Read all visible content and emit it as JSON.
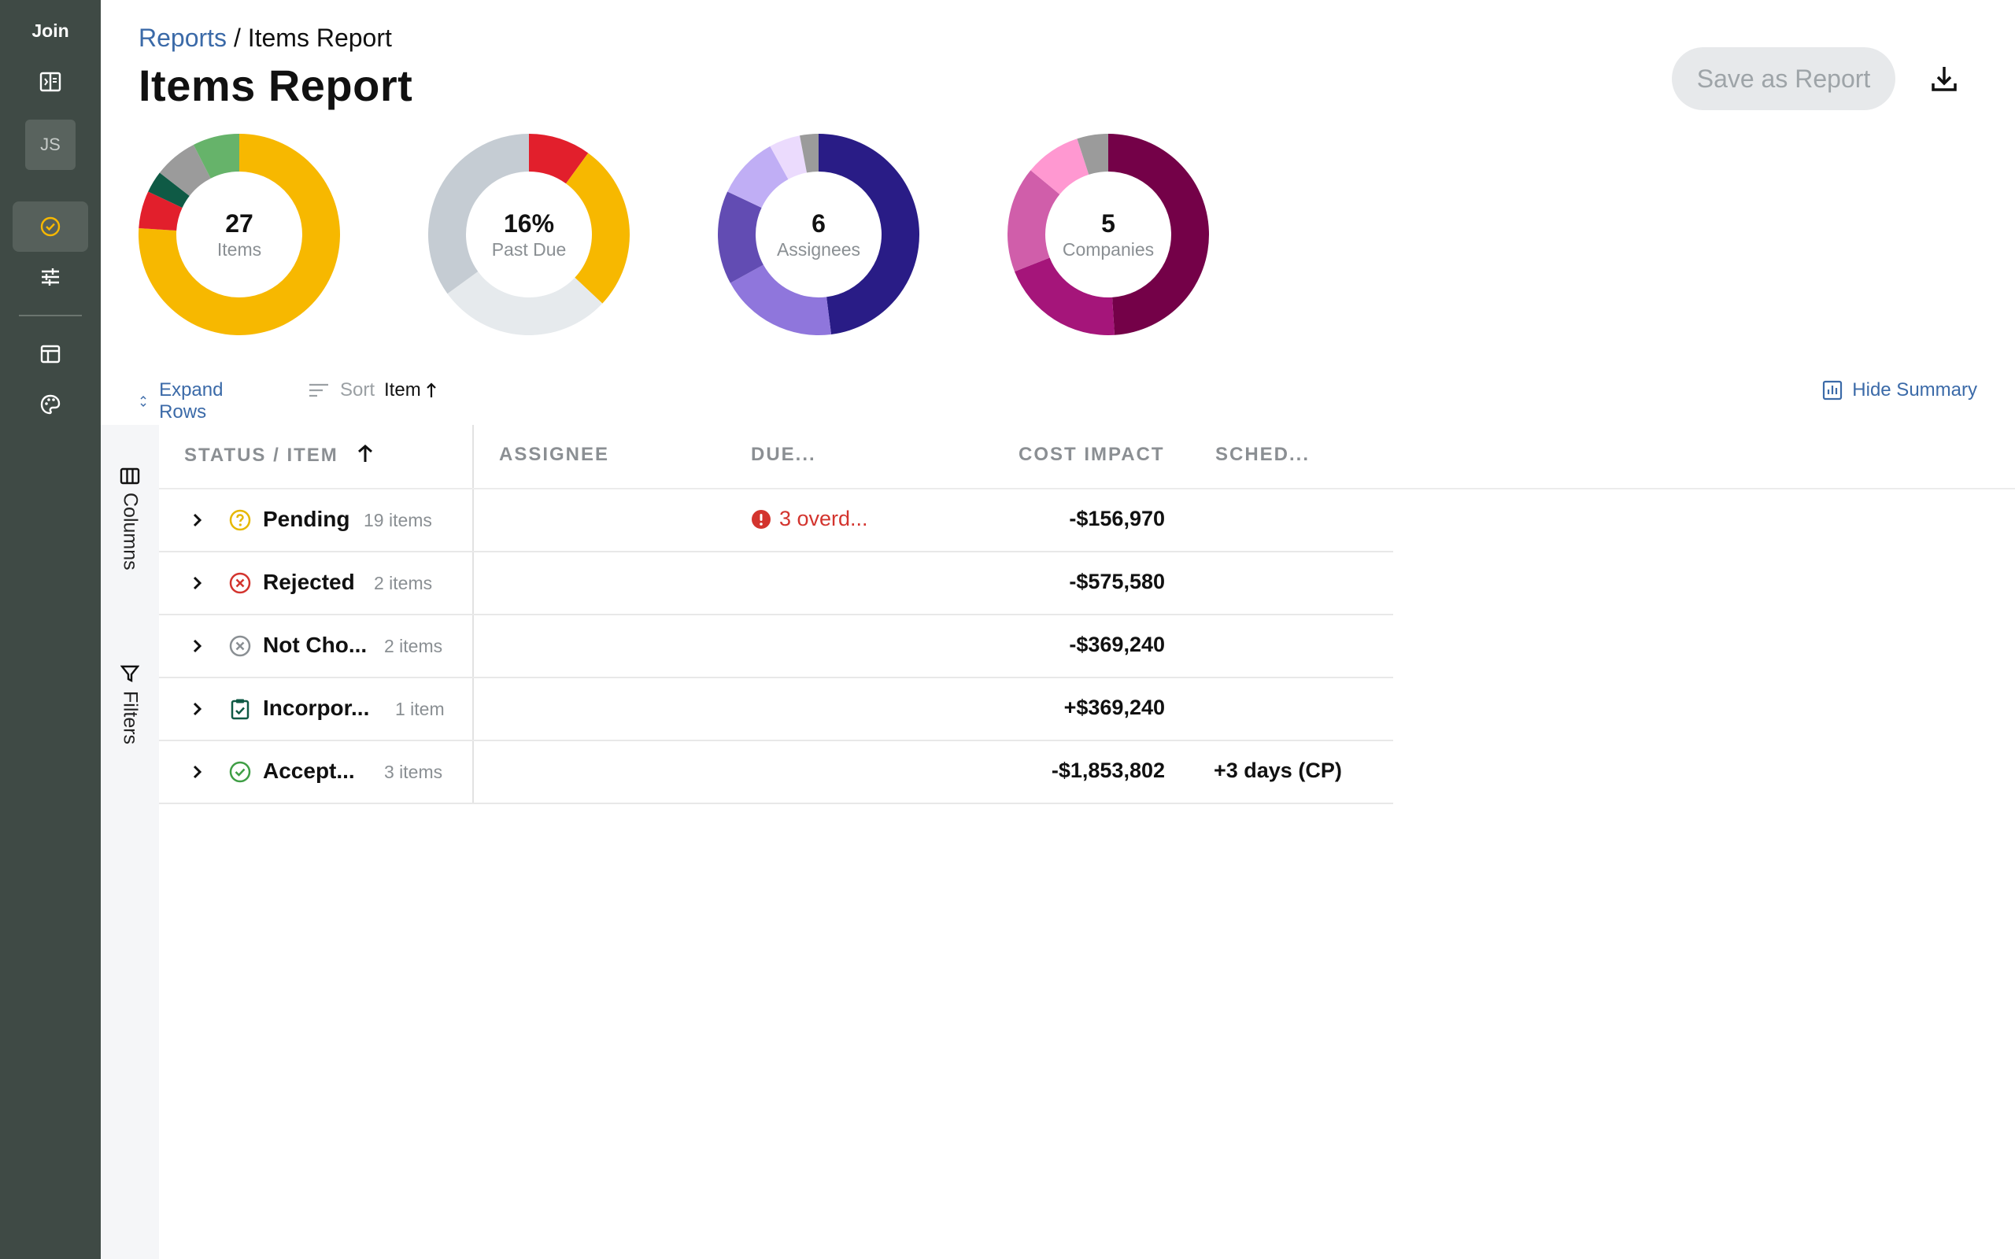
{
  "sidebar": {
    "brand": "Join",
    "avatar_initials": "JS",
    "icons": [
      "sidebar-toggle-icon",
      "check-circle-icon",
      "sliders-icon",
      "table-icon",
      "palette-icon"
    ]
  },
  "header": {
    "breadcrumb_link": "Reports",
    "breadcrumb_separator": " / ",
    "breadcrumb_current": "Items Report",
    "title": "Items Report",
    "save_label": "Save as Report"
  },
  "summary": [
    {
      "value": "27",
      "label": "Items",
      "segments": [
        {
          "color": "#f7b800",
          "fraction": 0.76
        },
        {
          "color": "#e21f2c",
          "fraction": 0.06
        },
        {
          "color": "#0f5a45",
          "fraction": 0.035
        },
        {
          "color": "#9b9b9b",
          "fraction": 0.07
        },
        {
          "color": "#66b36a",
          "fraction": 0.075
        }
      ]
    },
    {
      "value": "16%",
      "label": "Past Due",
      "segments": [
        {
          "color": "#e21f2c",
          "fraction": 0.1
        },
        {
          "color": "#f7b800",
          "fraction": 0.27
        },
        {
          "color": "#e6eaed",
          "fraction": 0.28
        },
        {
          "color": "#c5ccd3",
          "fraction": 0.35
        }
      ]
    },
    {
      "value": "6",
      "label": "Assignees",
      "segments": [
        {
          "color": "#291c86",
          "fraction": 0.48
        },
        {
          "color": "#8f76dc",
          "fraction": 0.19
        },
        {
          "color": "#624cb3",
          "fraction": 0.15
        },
        {
          "color": "#c0aef5",
          "fraction": 0.1
        },
        {
          "color": "#ebdbfd",
          "fraction": 0.05
        },
        {
          "color": "#9b9b9b",
          "fraction": 0.03
        }
      ]
    },
    {
      "value": "5",
      "label": "Companies",
      "segments": [
        {
          "color": "#740148",
          "fraction": 0.49
        },
        {
          "color": "#a5157a",
          "fraction": 0.2
        },
        {
          "color": "#d05eaa",
          "fraction": 0.17
        },
        {
          "color": "#ff98d1",
          "fraction": 0.09
        },
        {
          "color": "#9b9b9b",
          "fraction": 0.05
        }
      ]
    }
  ],
  "toolbar": {
    "expand_label": "Expand Rows",
    "sort_label": "Sort",
    "sort_value": "Item",
    "hide_summary_label": "Hide Summary"
  },
  "rail": {
    "columns_label": "Columns",
    "filters_label": "Filters"
  },
  "table": {
    "headers": {
      "status_item": "STATUS / ITEM",
      "assignee": "ASSIGNEE",
      "due": "DUE...",
      "cost": "COST IMPACT",
      "sched": "SCHED..."
    },
    "rows": [
      {
        "status": "pending",
        "name": "Pending",
        "count": "19 items",
        "due": "3 overd...",
        "cost": "-$156,970",
        "sched": ""
      },
      {
        "status": "rejected",
        "name": "Rejected",
        "count": "2 items",
        "due": "",
        "cost": "-$575,580",
        "sched": ""
      },
      {
        "status": "not-chosen",
        "name": "Not Cho...",
        "count": "2 items",
        "due": "",
        "cost": "-$369,240",
        "sched": ""
      },
      {
        "status": "incorporated",
        "name": "Incorpor...",
        "count": "1 item",
        "due": "",
        "cost": "+$369,240",
        "sched": ""
      },
      {
        "status": "accepted",
        "name": "Accept...",
        "count": "3 items",
        "due": "",
        "cost": "-$1,853,802",
        "sched": "+3 days (CP)"
      }
    ]
  }
}
